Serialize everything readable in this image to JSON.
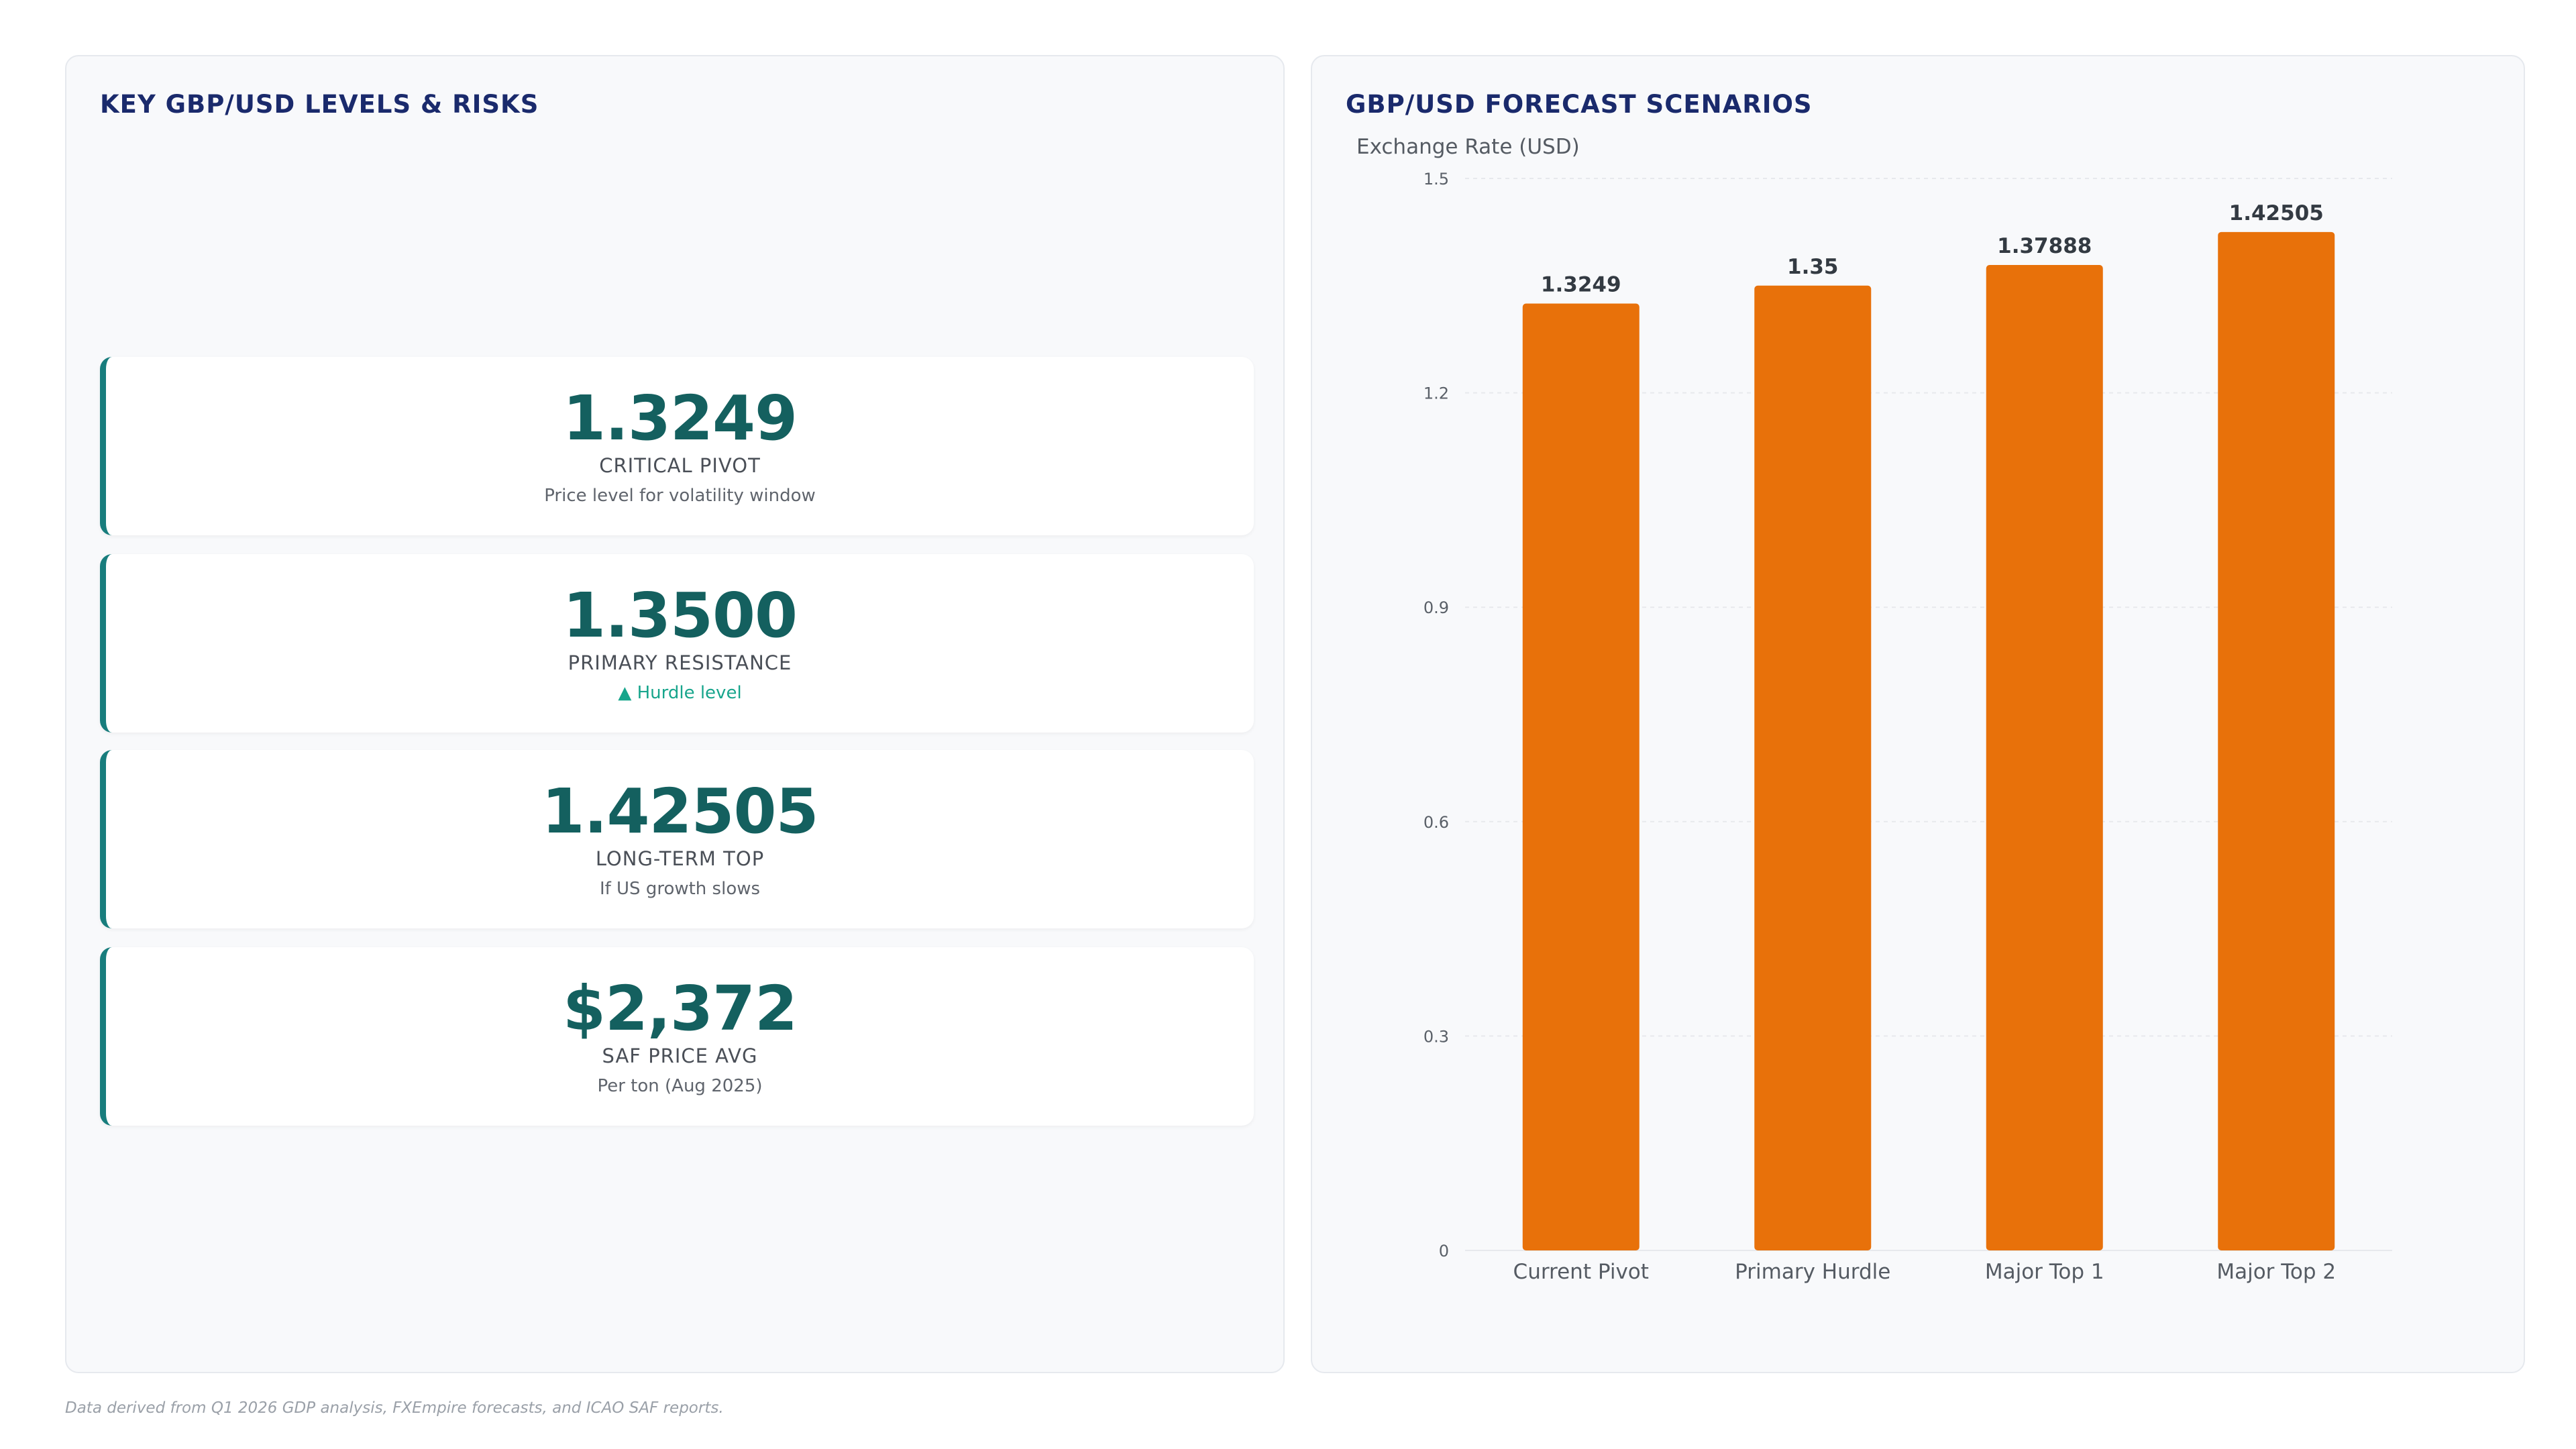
{
  "left_panel": {
    "title": "KEY GBP/USD LEVELS & RISKS",
    "cards": [
      {
        "value": "1.3249",
        "label": "CRITICAL PIVOT",
        "sub": "Price level for volatility window"
      },
      {
        "value": "1.3500",
        "label": "PRIMARY RESISTANCE",
        "sub": "▲ Hurdle level"
      },
      {
        "value": "1.42505",
        "label": "LONG-TERM TOP",
        "sub": "If US growth slows"
      },
      {
        "value": "$2,372",
        "label": "SAF PRICE AVG",
        "sub": "Per ton (Aug 2025)"
      }
    ]
  },
  "right_panel": {
    "title": "GBP/USD FORECAST SCENARIOS"
  },
  "chart_data": {
    "type": "bar",
    "title": "GBP/USD FORECAST SCENARIOS",
    "ylabel": "Exchange Rate (USD)",
    "xlabel": "",
    "categories": [
      "Current Pivot",
      "Primary Hurdle",
      "Major Top 1",
      "Major Top 2"
    ],
    "values": [
      1.3249,
      1.35,
      1.37888,
      1.42505
    ],
    "value_labels": [
      "1.3249",
      "1.35",
      "1.37888",
      "1.42505"
    ],
    "ylim": [
      0,
      1.5
    ],
    "yticks": [
      0,
      0.3,
      0.6,
      0.9,
      1.2,
      1.5
    ],
    "grid": true,
    "bar_color": "#e8710a"
  },
  "footnote": "Data derived from Q1 2026 GDP analysis, FXEmpire forecasts, and ICAO SAF reports."
}
